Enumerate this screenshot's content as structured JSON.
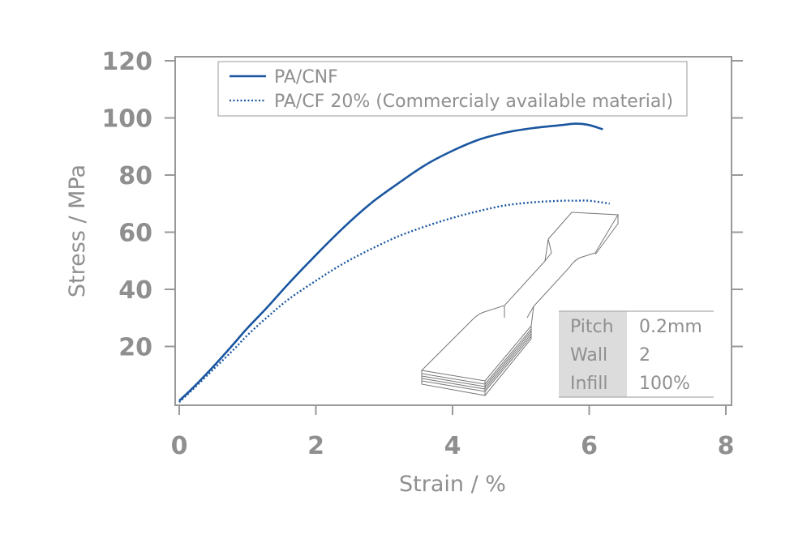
{
  "chart_data": {
    "type": "line",
    "xlabel": "Strain / %",
    "ylabel": "Stress / MPa",
    "xlim": [
      0,
      8
    ],
    "ylim": [
      0,
      120
    ],
    "xticks": [
      0,
      2,
      4,
      6,
      8
    ],
    "yticks": [
      20,
      40,
      60,
      80,
      100,
      120
    ],
    "grid": false,
    "legend_position": "top",
    "series": [
      {
        "name": "PA/CNF",
        "style": "solid",
        "color": "#1a56a0",
        "x": [
          0,
          0.2,
          0.5,
          0.8,
          1.0,
          1.3,
          1.6,
          2.0,
          2.4,
          2.8,
          3.2,
          3.6,
          4.0,
          4.4,
          4.8,
          5.2,
          5.6,
          5.8,
          6.0,
          6.2
        ],
        "y": [
          1,
          5.5,
          13,
          21,
          26.5,
          34,
          42,
          52,
          61.5,
          70,
          77,
          83.5,
          88.5,
          92.5,
          95,
          96.5,
          97.5,
          98,
          97.5,
          96
        ]
      },
      {
        "name": "PA/CF 20% (Commercialy available material)",
        "style": "dotted",
        "color": "#1a56a0",
        "x": [
          0,
          0.2,
          0.5,
          0.8,
          1.0,
          1.3,
          1.6,
          2.0,
          2.4,
          2.8,
          3.2,
          3.6,
          4.0,
          4.4,
          4.8,
          5.2,
          5.6,
          5.8,
          6.0,
          6.3
        ],
        "y": [
          0.5,
          5,
          12,
          19,
          24,
          30.5,
          36.5,
          43,
          49,
          54,
          58.5,
          62,
          65,
          67.5,
          69.5,
          70.5,
          71,
          71,
          71,
          70
        ]
      }
    ]
  },
  "print_table": {
    "rows": [
      {
        "label": "Pitch",
        "value": "0.2mm"
      },
      {
        "label": "Wall",
        "value": "2"
      },
      {
        "label": "Infill",
        "value": "100%"
      }
    ]
  }
}
